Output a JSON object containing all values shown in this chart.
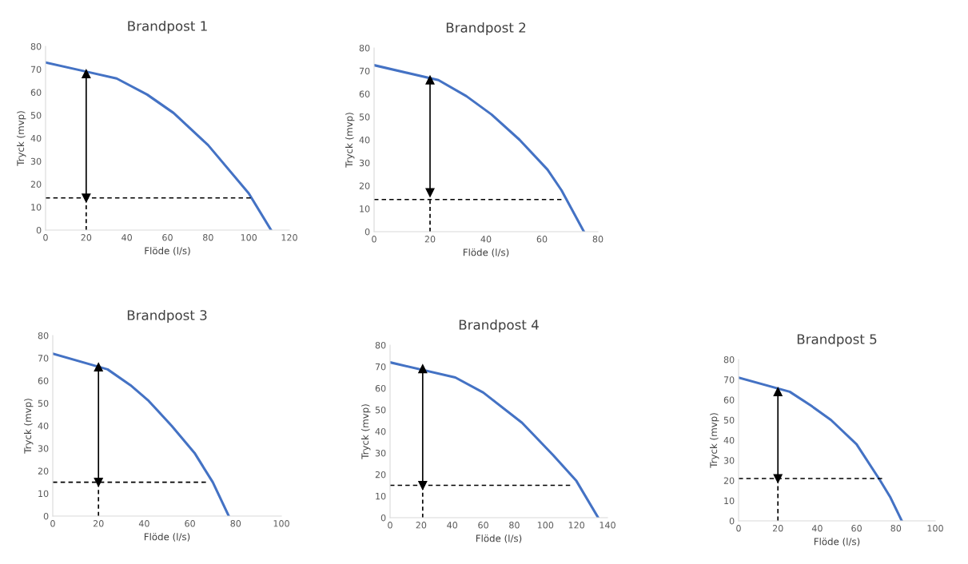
{
  "chart_data": [
    {
      "type": "line",
      "title": "Brandpost 1",
      "xlabel": "Flöde (l/s)",
      "ylabel": "Tryck (mvp)",
      "xlim": [
        0,
        120
      ],
      "xticks": [
        0,
        20,
        40,
        60,
        80,
        100,
        120
      ],
      "ylim": [
        0,
        80
      ],
      "yticks": [
        0,
        10,
        20,
        30,
        40,
        50,
        60,
        70,
        80
      ],
      "grid": false,
      "legend": false,
      "series": [
        {
          "color": "#4472c4",
          "x": [
            0,
            20,
            35,
            50,
            63,
            80,
            100,
            111
          ],
          "values": [
            73,
            69,
            66,
            59,
            51,
            37,
            16,
            0
          ]
        },
        {
          "color": "#000000",
          "line_style": "dashed",
          "x": [
            0,
            101
          ],
          "values": [
            14,
            14
          ]
        },
        {
          "color": "#000000",
          "line_style": "dashed",
          "x": [
            20,
            20
          ],
          "values": [
            0,
            14
          ]
        },
        {
          "color": "#000000",
          "marker": "triangle",
          "x": [
            20,
            20
          ],
          "values": [
            14,
            68
          ]
        }
      ]
    },
    {
      "type": "line",
      "title": "Brandpost 2",
      "xlabel": "Flöde (l/s)",
      "ylabel": "Tryck (mvp)",
      "xlim": [
        0,
        80
      ],
      "xticks": [
        0,
        20,
        40,
        60,
        80
      ],
      "ylim": [
        0,
        80
      ],
      "yticks": [
        0,
        10,
        20,
        30,
        40,
        50,
        60,
        70,
        80
      ],
      "grid": false,
      "legend": false,
      "series": [
        {
          "color": "#4472c4",
          "x": [
            0,
            23,
            33,
            42,
            52,
            62,
            67,
            75
          ],
          "values": [
            72.5,
            66,
            59,
            51,
            40,
            27,
            18,
            0
          ]
        },
        {
          "color": "#000000",
          "line_style": "dashed",
          "x": [
            0,
            67
          ],
          "values": [
            14,
            14
          ]
        },
        {
          "color": "#000000",
          "line_style": "dashed",
          "x": [
            20,
            20
          ],
          "values": [
            0,
            14
          ]
        },
        {
          "color": "#000000",
          "marker": "triangle",
          "x": [
            20,
            20
          ],
          "values": [
            17,
            66
          ]
        }
      ]
    },
    {
      "type": "line",
      "title": "Brandpost 3",
      "xlabel": "Flöde (l/s)",
      "ylabel": "Tryck (mvp)",
      "xlim": [
        0,
        100
      ],
      "xticks": [
        0,
        20,
        40,
        60,
        80,
        100
      ],
      "ylim": [
        0,
        80
      ],
      "yticks": [
        0,
        10,
        20,
        30,
        40,
        50,
        60,
        70,
        80
      ],
      "grid": false,
      "legend": false,
      "series": [
        {
          "color": "#4472c4",
          "x": [
            0,
            24,
            34,
            42,
            52,
            62,
            70,
            77
          ],
          "values": [
            72,
            65,
            58,
            51,
            40,
            28,
            15,
            0
          ]
        },
        {
          "color": "#000000",
          "line_style": "dashed",
          "x": [
            0,
            67
          ],
          "values": [
            15,
            15
          ]
        },
        {
          "color": "#000000",
          "line_style": "dashed",
          "x": [
            20,
            20
          ],
          "values": [
            0,
            15
          ]
        },
        {
          "color": "#000000",
          "marker": "triangle",
          "x": [
            20,
            20
          ],
          "values": [
            15,
            66
          ]
        }
      ]
    },
    {
      "type": "line",
      "title": "Brandpost 4",
      "xlabel": "Flöde (l/s)",
      "ylabel": "Tryck (mvp)",
      "xlim": [
        0,
        140
      ],
      "xticks": [
        0,
        20,
        40,
        60,
        80,
        100,
        120,
        140
      ],
      "ylim": [
        0,
        80
      ],
      "yticks": [
        0,
        10,
        20,
        30,
        40,
        50,
        60,
        70,
        80
      ],
      "grid": false,
      "legend": false,
      "series": [
        {
          "color": "#4472c4",
          "x": [
            0,
            42,
            60,
            85,
            105,
            120,
            134
          ],
          "values": [
            72,
            65,
            58,
            44,
            29,
            17,
            0
          ]
        },
        {
          "color": "#000000",
          "line_style": "dashed",
          "x": [
            0,
            116
          ],
          "values": [
            15,
            15
          ]
        },
        {
          "color": "#000000",
          "line_style": "dashed",
          "x": [
            21,
            21
          ],
          "values": [
            0,
            15
          ]
        },
        {
          "color": "#000000",
          "marker": "triangle",
          "x": [
            21,
            21
          ],
          "values": [
            15,
            69
          ]
        }
      ]
    },
    {
      "type": "line",
      "title": "Brandpost 5",
      "xlabel": "Flöde (l/s)",
      "ylabel": "Tryck (mvp)",
      "xlim": [
        0,
        100
      ],
      "xticks": [
        0,
        20,
        40,
        60,
        80,
        100
      ],
      "ylim": [
        0,
        80
      ],
      "yticks": [
        0,
        10,
        20,
        30,
        40,
        50,
        60,
        70,
        80
      ],
      "grid": false,
      "legend": false,
      "series": [
        {
          "color": "#4472c4",
          "x": [
            0,
            26,
            37,
            47,
            60,
            72,
            77,
            83
          ],
          "values": [
            71,
            64,
            57,
            50,
            38,
            20,
            12,
            0
          ]
        },
        {
          "color": "#000000",
          "line_style": "dashed",
          "x": [
            0,
            73
          ],
          "values": [
            21,
            21
          ]
        },
        {
          "color": "#000000",
          "line_style": "dashed",
          "x": [
            20,
            20
          ],
          "values": [
            0,
            21
          ]
        },
        {
          "color": "#000000",
          "marker": "triangle",
          "x": [
            20,
            20
          ],
          "values": [
            21,
            64
          ]
        }
      ]
    }
  ]
}
